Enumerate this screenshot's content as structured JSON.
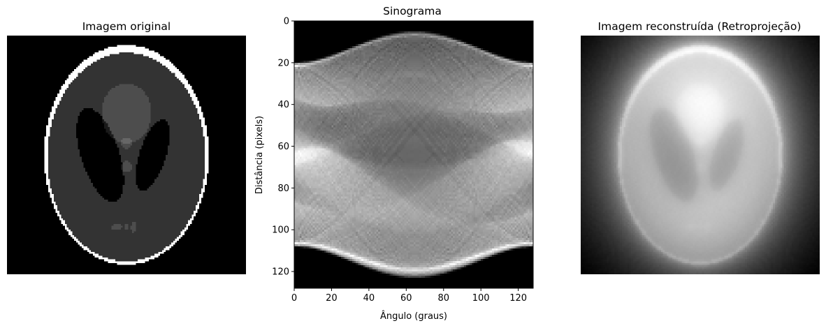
{
  "chart_data": [
    {
      "type": "heatmap",
      "title": "Imagem original",
      "colormap": "gray",
      "axis_visible": false,
      "ellipses": [
        {
          "cx": 0.0,
          "cy": 0.0,
          "a": 0.69,
          "b": 0.92,
          "angle": 0,
          "value": 1.0
        },
        {
          "cx": 0.0,
          "cy": -0.0184,
          "a": 0.6624,
          "b": 0.874,
          "angle": 0,
          "value": -0.8
        },
        {
          "cx": 0.22,
          "cy": 0.0,
          "a": 0.11,
          "b": 0.31,
          "angle": -18,
          "value": -0.2
        },
        {
          "cx": -0.22,
          "cy": 0.0,
          "a": 0.16,
          "b": 0.41,
          "angle": 18,
          "value": -0.2
        },
        {
          "cx": 0.0,
          "cy": 0.35,
          "a": 0.21,
          "b": 0.25,
          "angle": 0,
          "value": 0.1
        },
        {
          "cx": 0.0,
          "cy": 0.1,
          "a": 0.046,
          "b": 0.046,
          "angle": 0,
          "value": 0.1
        },
        {
          "cx": 0.0,
          "cy": -0.1,
          "a": 0.046,
          "b": 0.046,
          "angle": 0,
          "value": 0.1
        },
        {
          "cx": -0.08,
          "cy": -0.605,
          "a": 0.046,
          "b": 0.023,
          "angle": 0,
          "value": 0.1
        },
        {
          "cx": 0.0,
          "cy": -0.605,
          "a": 0.023,
          "b": 0.023,
          "angle": 0,
          "value": 0.1
        },
        {
          "cx": 0.06,
          "cy": -0.605,
          "a": 0.023,
          "b": 0.046,
          "angle": 0,
          "value": 0.1
        }
      ]
    },
    {
      "type": "heatmap",
      "title": "Sinograma",
      "xlabel": "Ângulo (graus)",
      "ylabel": "Distância (pixels)",
      "colormap": "gray",
      "xlim": [
        0,
        128
      ],
      "ylim": [
        128,
        0
      ],
      "xticks": [
        "0",
        "20",
        "40",
        "60",
        "80",
        "100",
        "120"
      ],
      "yticks": [
        "0",
        "20",
        "40",
        "60",
        "80",
        "100",
        "120"
      ],
      "angles_deg": [
        0,
        128
      ],
      "detector_bins": 128
    },
    {
      "type": "heatmap",
      "title": "Imagem reconstruída (Retroprojeção)",
      "colormap": "gray",
      "axis_visible": false,
      "method": "unfiltered backprojection"
    }
  ]
}
